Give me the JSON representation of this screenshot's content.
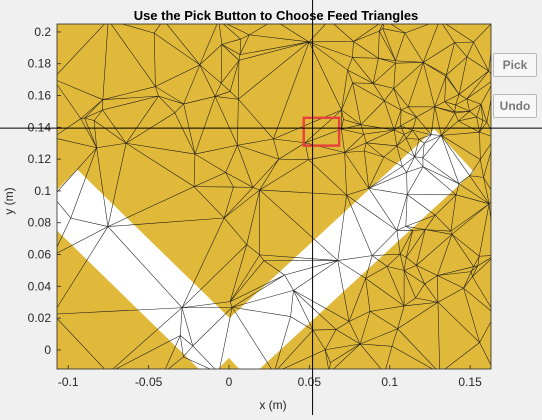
{
  "figure": {
    "title": "Use the Pick Button to Choose Feed Triangles",
    "xlabel": "x (m)",
    "ylabel": "y (m)"
  },
  "buttons": {
    "pick": "Pick",
    "undo": "Undo"
  },
  "colors": {
    "mesh_fill": "#e0b83a",
    "mesh_edge": "#1a1a1a",
    "gap": "#ffffff",
    "grid": "#e6e6e6",
    "crosshair": "#000000",
    "selection": "#e8403a",
    "button_text": "#7a7a7a"
  },
  "chart_data": {
    "type": "mesh",
    "xlim": [
      -0.107,
      0.163
    ],
    "ylim": [
      -0.012,
      0.205
    ],
    "xticks": [
      -0.1,
      -0.05,
      0,
      0.05,
      0.1,
      0.15
    ],
    "xtick_labels": [
      "-0.1",
      "-0.05",
      "0",
      "0.05",
      "0.1",
      "0.15"
    ],
    "yticks": [
      0,
      0.02,
      0.04,
      0.06,
      0.08,
      0.1,
      0.12,
      0.14,
      0.16,
      0.18,
      0.2
    ],
    "ytick_labels": [
      "0",
      "0.02",
      "0.04",
      "0.06",
      "0.08",
      "0.1",
      "0.12",
      "0.14",
      "0.16",
      "0.18",
      "0.2"
    ],
    "grid": true,
    "crosshair": {
      "x": 0.052,
      "y": 0.1395
    },
    "selection_box": {
      "x0": 0.0465,
      "x1": 0.0685,
      "y0": 0.1285,
      "y1": 0.146
    },
    "gap_arms": [
      {
        "outer": [
          -0.107,
          0.1005
        ],
        "inner": [
          0.0,
          -0.005
        ]
      },
      {
        "outer": [
          0.14,
          0.1255
        ],
        "inner": [
          0.0,
          -0.005
        ]
      }
    ],
    "gap_width": 0.036
  }
}
